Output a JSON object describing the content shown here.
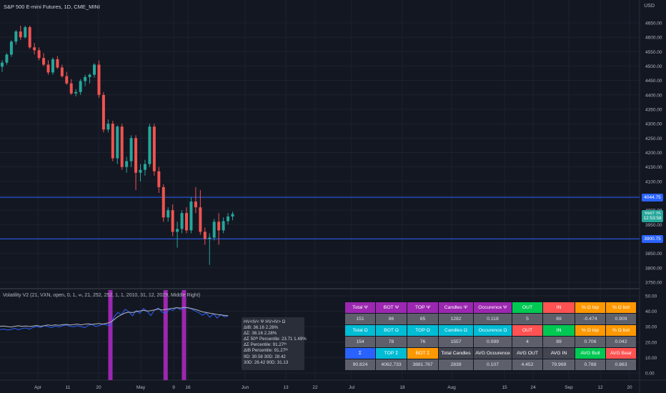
{
  "header": {
    "symbol_title": "S&P 500 E-mini Futures, 1D, CME_MINI",
    "currency": "USD"
  },
  "price_axis": {
    "ticks": [
      "4650.00",
      "4600.00",
      "4550.00",
      "4500.00",
      "4450.00",
      "4400.00",
      "4350.00",
      "4300.00",
      "4250.00",
      "4200.00",
      "4150.00",
      "4100.00",
      "4050.00",
      "4000.00",
      "3950.00",
      "3900.00",
      "3850.00",
      "3800.00",
      "3750.00"
    ],
    "labels": [
      {
        "text": "4044.75",
        "value": 4044.75,
        "color": "#2962ff"
      },
      {
        "text": "3987.25",
        "value": 3987.25,
        "color": "#26a69a"
      },
      {
        "text": "12:53:58",
        "value": 3972.5,
        "color": "#26a69a"
      },
      {
        "text": "3900.75",
        "value": 3900.75,
        "color": "#2962ff"
      }
    ]
  },
  "time_axis": {
    "ticks": [
      "Apr",
      "11",
      "20",
      "May",
      "9",
      "16",
      "Jun",
      "13",
      "22",
      "Jul",
      "18",
      "Aug",
      "15",
      "24",
      "Sep",
      "12",
      "20"
    ]
  },
  "indicator": {
    "title": "Volatility V2 (21, VXN, open, 0, 1, ∞, 21, 252, 252, 1, 1, 2010, 31, 12, 2029, Middle Right)",
    "axis_ticks": [
      "50.00",
      "40.00",
      "30.00",
      "20.00",
      "10.00",
      "0.00"
    ],
    "tooltip_lines": [
      "HV<IV< Ψ  HV>IV> Ω",
      "ΔIB: 36.16  2.28%",
      "ΔΣ: 36.16  2.28%",
      "ΔΣ 50ᵗʰ Percentile: 23.71  1.49%",
      "ΔΣ Percentile: 91.27ᵗʰ",
      "ΔIB Percentile: 91.27ᵗʰ",
      "9D: 30.58  30D: 28.42",
      "30D: 28.42  90D: 31.13"
    ]
  },
  "stats_table": {
    "rows": [
      [
        "Total Ψ",
        "BOT Ψ",
        "TOP Ψ",
        "Candles Ψ",
        "Occurence Ψ",
        "OUT",
        "IN",
        "% Ω top",
        "% Ω bot"
      ],
      [
        "151",
        "86",
        "65",
        "1282",
        "0.118",
        "5",
        "69",
        "-0.474",
        "0.909"
      ],
      [
        "Total Ω",
        "BOT Ω",
        "TOP Ω",
        "Candles Ω",
        "Occurence Ω",
        "OUT",
        "IN",
        "% Ω top",
        "% Ω bot"
      ],
      [
        "154",
        "78",
        "76",
        "1557",
        "0.099",
        "4",
        "89",
        "0.706",
        "0.042"
      ],
      [
        "Σ",
        "TOP Σ",
        "BOT Σ",
        "Total Candles",
        "AVG Occurence",
        "AVG OUT",
        "AVG IN",
        "AVG Bull",
        "AVG Bear"
      ],
      [
        "90.824",
        "4062.733",
        "3881.767",
        "2839",
        "0.107",
        "4.452",
        "79.969",
        "0.788",
        "0.863"
      ]
    ],
    "row_colors": [
      [
        "#9c27b0",
        "#9c27b0",
        "#9c27b0",
        "#9c27b0",
        "#9c27b0",
        "#00c853",
        "#ff5252",
        "#ff9800",
        "#ff9800"
      ],
      [
        "#5d606b",
        "#5d606b",
        "#5d606b",
        "#5d606b",
        "#5d606b",
        "#5d606b",
        "#5d606b",
        "#5d606b",
        "#5d606b"
      ],
      [
        "#00bcd4",
        "#00bcd4",
        "#00bcd4",
        "#00bcd4",
        "#00bcd4",
        "#ff5252",
        "#00c853",
        "#ff9800",
        "#ff9800"
      ],
      [
        "#5d606b",
        "#5d606b",
        "#5d606b",
        "#5d606b",
        "#5d606b",
        "#5d606b",
        "#5d606b",
        "#5d606b",
        "#5d606b"
      ],
      [
        "#2962ff",
        "#00bcd4",
        "#ff9800",
        "#434651",
        "#434651",
        "#434651",
        "#434651",
        "#00c853",
        "#ff5252"
      ],
      [
        "#5d606b",
        "#5d606b",
        "#5d606b",
        "#5d606b",
        "#5d606b",
        "#5d606b",
        "#5d606b",
        "#5d606b",
        "#5d606b"
      ]
    ]
  },
  "colors": {
    "background": "#131722",
    "bull": "#26a69a",
    "bear": "#ef5350",
    "level_line": "#2962ff",
    "volatility_line": "#2962ff",
    "implied_line": "#b2b5be",
    "highlight_bar": "#9c27b0"
  },
  "chart_data": [
    {
      "type": "candlestick",
      "title": "S&P 500 E-mini Futures, 1D, CME_MINI",
      "ylim": [
        3750,
        4675
      ],
      "horizontal_levels": [
        4044.75,
        3900.75
      ],
      "last_price": 3987.25,
      "candles": [
        {
          "o": 4498,
          "h": 4520,
          "l": 4480,
          "c": 4512
        },
        {
          "o": 4512,
          "h": 4545,
          "l": 4505,
          "c": 4540
        },
        {
          "o": 4540,
          "h": 4590,
          "l": 4532,
          "c": 4585
        },
        {
          "o": 4585,
          "h": 4625,
          "l": 4575,
          "c": 4620
        },
        {
          "o": 4620,
          "h": 4640,
          "l": 4590,
          "c": 4600
        },
        {
          "o": 4600,
          "h": 4640,
          "l": 4595,
          "c": 4635
        },
        {
          "o": 4635,
          "h": 4640,
          "l": 4560,
          "c": 4565
        },
        {
          "o": 4565,
          "h": 4580,
          "l": 4540,
          "c": 4555
        },
        {
          "o": 4555,
          "h": 4565,
          "l": 4520,
          "c": 4528
        },
        {
          "o": 4528,
          "h": 4545,
          "l": 4500,
          "c": 4505
        },
        {
          "o": 4505,
          "h": 4520,
          "l": 4470,
          "c": 4478
        },
        {
          "o": 4478,
          "h": 4530,
          "l": 4470,
          "c": 4524
        },
        {
          "o": 4524,
          "h": 4535,
          "l": 4490,
          "c": 4495
        },
        {
          "o": 4495,
          "h": 4505,
          "l": 4460,
          "c": 4465
        },
        {
          "o": 4465,
          "h": 4480,
          "l": 4435,
          "c": 4440
        },
        {
          "o": 4440,
          "h": 4455,
          "l": 4400,
          "c": 4405
        },
        {
          "o": 4405,
          "h": 4420,
          "l": 4395,
          "c": 4410
        },
        {
          "o": 4410,
          "h": 4455,
          "l": 4400,
          "c": 4448
        },
        {
          "o": 4448,
          "h": 4470,
          "l": 4430,
          "c": 4462
        },
        {
          "o": 4462,
          "h": 4475,
          "l": 4440,
          "c": 4470
        },
        {
          "o": 4470,
          "h": 4510,
          "l": 4460,
          "c": 4505
        },
        {
          "o": 4505,
          "h": 4520,
          "l": 4390,
          "c": 4400
        },
        {
          "o": 4400,
          "h": 4410,
          "l": 4270,
          "c": 4280
        },
        {
          "o": 4280,
          "h": 4315,
          "l": 4270,
          "c": 4300
        },
        {
          "o": 4300,
          "h": 4310,
          "l": 4170,
          "c": 4180
        },
        {
          "o": 4180,
          "h": 4295,
          "l": 4160,
          "c": 4290
        },
        {
          "o": 4290,
          "h": 4300,
          "l": 4140,
          "c": 4150
        },
        {
          "o": 4150,
          "h": 4185,
          "l": 4130,
          "c": 4170
        },
        {
          "o": 4170,
          "h": 4260,
          "l": 4150,
          "c": 4250
        },
        {
          "o": 4250,
          "h": 4260,
          "l": 4070,
          "c": 4130
        },
        {
          "o": 4130,
          "h": 4160,
          "l": 4100,
          "c": 4140
        },
        {
          "o": 4140,
          "h": 4175,
          "l": 4120,
          "c": 4160
        },
        {
          "o": 4160,
          "h": 4300,
          "l": 4150,
          "c": 4290
        },
        {
          "o": 4290,
          "h": 4300,
          "l": 4120,
          "c": 4135
        },
        {
          "o": 4135,
          "h": 4150,
          "l": 4060,
          "c": 4080
        },
        {
          "o": 4080,
          "h": 4090,
          "l": 3960,
          "c": 3975
        },
        {
          "o": 3975,
          "h": 4010,
          "l": 3960,
          "c": 4000
        },
        {
          "o": 4000,
          "h": 4020,
          "l": 3910,
          "c": 3925
        },
        {
          "o": 3925,
          "h": 3960,
          "l": 3870,
          "c": 3935
        },
        {
          "o": 3935,
          "h": 4000,
          "l": 3920,
          "c": 3990
        },
        {
          "o": 3990,
          "h": 4010,
          "l": 3920,
          "c": 3930
        },
        {
          "o": 3930,
          "h": 4045,
          "l": 3920,
          "c": 4030
        },
        {
          "o": 4030,
          "h": 4080,
          "l": 3990,
          "c": 4010
        },
        {
          "o": 4010,
          "h": 4070,
          "l": 3915,
          "c": 3925
        },
        {
          "o": 3925,
          "h": 3940,
          "l": 3880,
          "c": 3900
        },
        {
          "o": 3900,
          "h": 3920,
          "l": 3810,
          "c": 3905
        },
        {
          "o": 3905,
          "h": 3970,
          "l": 3895,
          "c": 3960
        },
        {
          "o": 3960,
          "h": 3990,
          "l": 3880,
          "c": 3930
        },
        {
          "o": 3930,
          "h": 3975,
          "l": 3920,
          "c": 3962
        },
        {
          "o": 3962,
          "h": 3990,
          "l": 3950,
          "c": 3978
        },
        {
          "o": 3978,
          "h": 3995,
          "l": 3965,
          "c": 3987
        }
      ]
    },
    {
      "type": "line",
      "title": "Volatility V2 (21, VXN, open, 0, 1, ∞, 21, 252, 252, 1, 1, 2010, 31, 12, 2029, Middle Right)",
      "ylim": [
        0,
        50
      ],
      "highlight_indices": [
        30,
        45,
        50
      ],
      "series": [
        {
          "values": [
            28,
            28.5,
            27.8,
            28.2,
            29,
            28,
            28.8,
            29.2,
            28.4,
            29.6,
            30.2,
            29.4,
            30.8,
            30.1,
            29.5,
            30.4,
            29.8,
            30.6,
            31.2,
            30.3,
            29.9,
            30.7,
            30.1,
            29.4,
            30.9,
            31.5,
            30.2,
            30.8,
            31.6,
            31.1,
            30.6,
            36.4,
            39.2,
            37.8,
            41.3,
            39.6,
            37.1,
            40.5,
            38.6,
            41.8,
            39.9,
            37.2,
            40.8,
            42.1,
            39.5,
            38.7,
            41.2,
            40.6,
            42.4,
            41.1,
            41.8,
            42.6,
            41.5,
            40.2,
            39.1,
            37.4,
            38.8,
            36.1,
            38.3,
            35.6,
            37.9,
            36.4,
            37.1
          ]
        },
        {
          "values": [
            30.2,
            30.4,
            30.1,
            29.8,
            30.3,
            30.6,
            30.2,
            30.5,
            30.1,
            30.4,
            30.8,
            30.3,
            30.6,
            31.1,
            30.8,
            31.2,
            30.9,
            31.3,
            31.5,
            31.1,
            31.4,
            31.7,
            31.2,
            31.6,
            31.9,
            31.5,
            31.8,
            32.1,
            31.7,
            32.2,
            32.8,
            34.6,
            36.5,
            37.8,
            38.9,
            39.4,
            39.1,
            39.8,
            40.2,
            40.6,
            40.1,
            40.4,
            40.9,
            41.5,
            40.8,
            41.2,
            41.6,
            41.9,
            42.3,
            42.1,
            42.5,
            42.2,
            41.8,
            41.2,
            40.5,
            39.6,
            39.2,
            38.7,
            38.4,
            37.9,
            37.6,
            37.3,
            37.1
          ]
        }
      ]
    }
  ]
}
